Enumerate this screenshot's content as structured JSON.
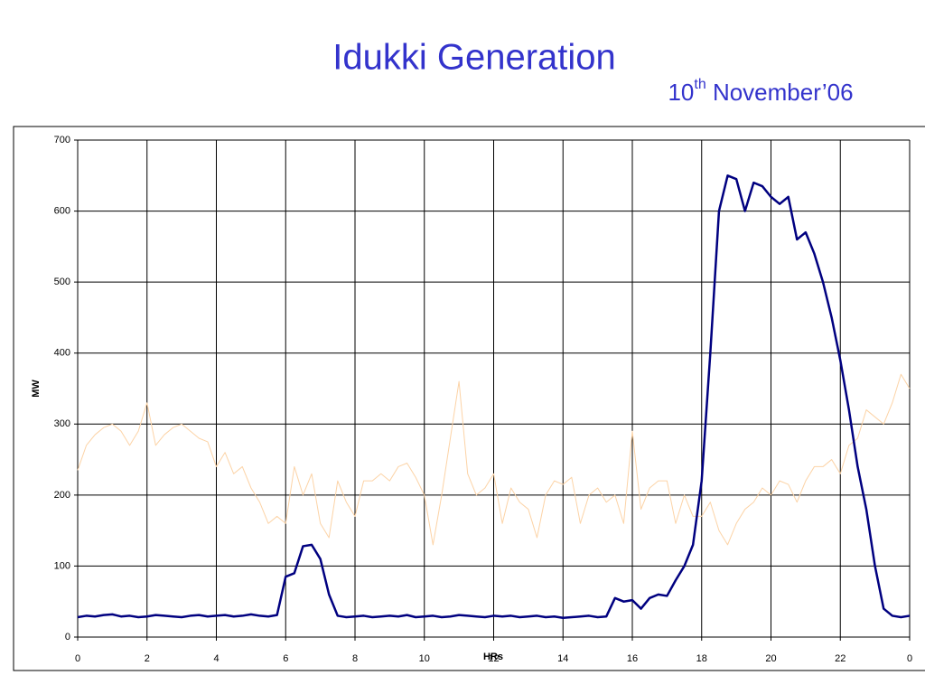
{
  "chart_data": {
    "type": "line",
    "title": "Idukki Generation",
    "subtitle": [
      "10",
      "th",
      " November’06"
    ],
    "xlabel": "HRs",
    "ylabel": "MW",
    "x": [
      0,
      0.25,
      0.5,
      0.75,
      1,
      1.25,
      1.5,
      1.75,
      2,
      2.25,
      2.5,
      2.75,
      3,
      3.25,
      3.5,
      3.75,
      4,
      4.25,
      4.5,
      4.75,
      5,
      5.25,
      5.5,
      5.75,
      6,
      6.25,
      6.5,
      6.75,
      7,
      7.25,
      7.5,
      7.75,
      8,
      8.25,
      8.5,
      8.75,
      9,
      9.25,
      9.5,
      9.75,
      10,
      10.25,
      10.5,
      10.75,
      11,
      11.25,
      11.5,
      11.75,
      12,
      12.25,
      12.5,
      12.75,
      13,
      13.25,
      13.5,
      13.75,
      14,
      14.25,
      14.5,
      14.75,
      15,
      15.25,
      15.5,
      15.75,
      16,
      16.25,
      16.5,
      16.75,
      17,
      17.25,
      17.5,
      17.75,
      18,
      18.25,
      18.5,
      18.75,
      19,
      19.25,
      19.5,
      19.75,
      20,
      20.25,
      20.5,
      20.75,
      21,
      21.25,
      21.5,
      21.75,
      22,
      22.25,
      22.5,
      22.75,
      23,
      23.25,
      23.5,
      23.75,
      24
    ],
    "series": [
      {
        "color": "#fcd3a6",
        "values": [
          235,
          270,
          285,
          295,
          300,
          290,
          270,
          290,
          330,
          270,
          285,
          295,
          300,
          290,
          280,
          275,
          240,
          260,
          230,
          240,
          210,
          190,
          160,
          170,
          160,
          240,
          200,
          230,
          160,
          140,
          220,
          190,
          170,
          220,
          220,
          230,
          220,
          240,
          245,
          225,
          200,
          130,
          200,
          280,
          360,
          230,
          200,
          210,
          230,
          160,
          210,
          190,
          180,
          140,
          200,
          220,
          215,
          225,
          160,
          200,
          210,
          190,
          200,
          160,
          290,
          180,
          210,
          220,
          220,
          160,
          200,
          170,
          170,
          190,
          150,
          130,
          160,
          180,
          190,
          210,
          200,
          220,
          215,
          190,
          220,
          240,
          240,
          250,
          230,
          270,
          280,
          320,
          310,
          300,
          330,
          370,
          350
        ]
      },
      {
        "color": "#000080",
        "values": [
          28,
          30,
          29,
          31,
          32,
          29,
          30,
          28,
          29,
          31,
          30,
          29,
          28,
          30,
          31,
          29,
          30,
          31,
          29,
          30,
          32,
          30,
          29,
          31,
          85,
          90,
          128,
          130,
          110,
          60,
          30,
          28,
          29,
          30,
          28,
          29,
          30,
          29,
          31,
          28,
          29,
          30,
          28,
          29,
          31,
          30,
          29,
          28,
          30,
          29,
          30,
          28,
          29,
          30,
          28,
          29,
          27,
          28,
          29,
          30,
          28,
          29,
          55,
          50,
          52,
          40,
          55,
          60,
          58,
          80,
          100,
          130,
          220,
          400,
          600,
          650,
          645,
          600,
          640,
          635,
          620,
          610,
          620,
          560,
          570,
          540,
          500,
          450,
          390,
          320,
          240,
          180,
          100,
          40,
          30,
          28,
          30
        ]
      }
    ],
    "xlim": [
      0,
      24
    ],
    "xticks": [
      0,
      2,
      4,
      6,
      8,
      10,
      12,
      14,
      16,
      18,
      20,
      22,
      {
        "value": 24,
        "label": "0"
      }
    ],
    "ylim": [
      0,
      700
    ],
    "yticks": [
      0,
      100,
      200,
      300,
      400,
      500,
      600,
      700
    ],
    "grid": true
  }
}
